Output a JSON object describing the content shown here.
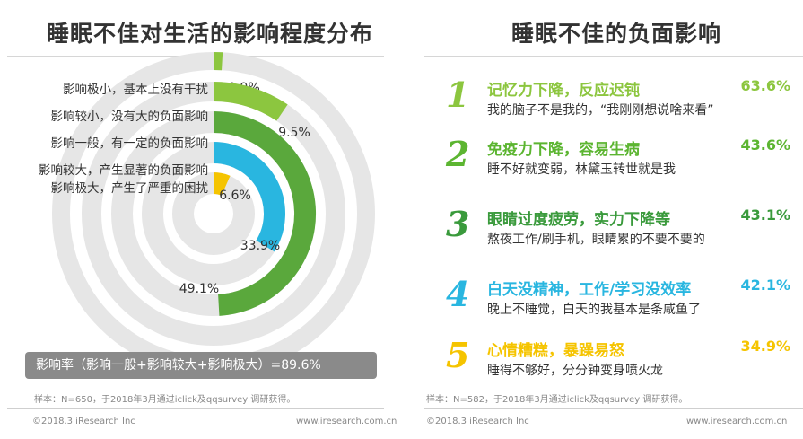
{
  "left": {
    "title": "睡眠不佳对生活的影响程度分布",
    "summary": "影响率（影响一般+影响较大+影响极大）=89.6%",
    "note": "样本：N=650，于2018年3月通过iclick及qqsurvey 调研获得。",
    "copyright": "©2018.3 iResearch Inc",
    "site": "www.iresearch.com.cn"
  },
  "right": {
    "title": "睡眠不佳的负面影响",
    "note": "样本：N=582，于2018年3月通过iclick及qqsurvey 调研获得。",
    "copyright": "©2018.3 iResearch Inc",
    "site": "www.iresearch.com.cn",
    "items": [
      {
        "num": "1",
        "head": "记忆力下降，反应迟钝",
        "sub": "我的脑子不是我的，“我刚刚想说啥来看”",
        "value": "63.6%",
        "color": "#8cc63f"
      },
      {
        "num": "2",
        "head": "免疫力下降，容易生病",
        "sub": "睡不好就变弱，林黛玉转世就是我",
        "value": "43.6%",
        "color": "#5cb531"
      },
      {
        "num": "3",
        "head": "眼睛过度疲劳，实力下降等",
        "sub": "熬夜工作/刷手机，眼睛累的不要不要的",
        "value": "43.1%",
        "color": "#3a9a3c"
      },
      {
        "num": "4",
        "head": "白天没精神，工作/学习没效率",
        "sub": "晚上不睡觉，白天的我基本是条咸鱼了",
        "value": "42.1%",
        "color": "#29b6e0"
      },
      {
        "num": "5",
        "head": "心情糟糕，暴躁易怒",
        "sub": "睡得不够好，分分钟变身喷火龙",
        "value": "34.9%",
        "color": "#f5c400"
      }
    ]
  },
  "chart_data": [
    {
      "type": "radial-bar",
      "title": "睡眠不佳对生活的影响程度分布",
      "categories": [
        "影响极小，基本上没有干扰",
        "影响较小，没有大的负面影响",
        "影响一般，有一定的负面影响",
        "影响较大，产生显著的负面影响",
        "影响极大，产生了严重的困扰"
      ],
      "values": [
        0.9,
        9.5,
        49.1,
        33.9,
        6.6
      ],
      "value_labels": [
        "0.9%",
        "9.5%",
        "49.1%",
        "33.9%",
        "6.6%"
      ],
      "colors": [
        "#8cc63f",
        "#8cc63f",
        "#5aa83c",
        "#29b6e0",
        "#f5c400"
      ],
      "track_color": "#e6e6e6"
    },
    {
      "type": "table",
      "title": "睡眠不佳的负面影响",
      "categories": [
        "记忆力下降，反应迟钝",
        "免疫力下降，容易生病",
        "眼睛过度疲劳，实力下降等",
        "白天没精神，工作/学习没效率",
        "心情糟糕，暴躁易怒"
      ],
      "values": [
        63.6,
        43.6,
        43.1,
        42.1,
        34.9
      ]
    }
  ]
}
